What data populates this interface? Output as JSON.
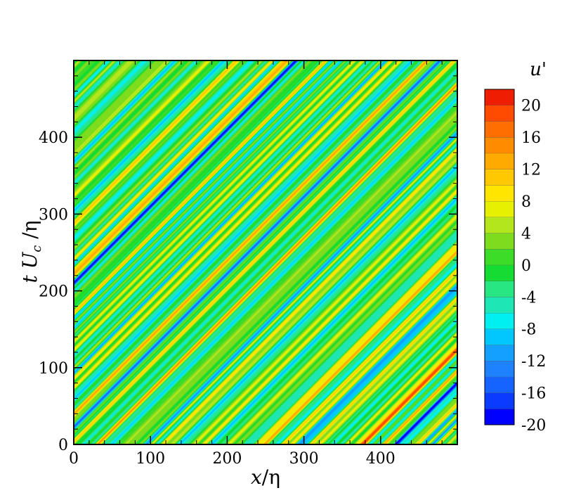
{
  "chart_data": {
    "type": "heatmap",
    "title": "",
    "xlabel": "x/η",
    "ylabel": "t U_c /η",
    "x_ticks": [
      "0",
      "100",
      "200",
      "300",
      "400"
    ],
    "x_tick_values": [
      0,
      100,
      200,
      300,
      400
    ],
    "y_ticks": [
      "0",
      "100",
      "200",
      "300",
      "400"
    ],
    "y_tick_values": [
      0,
      100,
      200,
      300,
      400
    ],
    "xlim": [
      0,
      500
    ],
    "ylim": [
      0,
      500
    ],
    "grid": false,
    "pattern": "diagonal streaks of constant x - t·U_c (convected fluctuations)",
    "colorbar": {
      "title": "u'",
      "min": -20,
      "max": 22,
      "tick_labels": [
        "20",
        "16",
        "12",
        "8",
        "4",
        "0",
        "-4",
        "-8",
        "-12",
        "-16",
        "-20"
      ],
      "tick_values": [
        20,
        16,
        12,
        8,
        4,
        0,
        -4,
        -8,
        -12,
        -16,
        -20
      ],
      "levels": [
        -20,
        -18,
        -16,
        -14,
        -12,
        -10,
        -8,
        -6,
        -4,
        -2,
        0,
        2,
        4,
        6,
        8,
        10,
        12,
        14,
        16,
        18,
        20,
        22
      ],
      "colors": [
        "#0000ff",
        "#0a3cff",
        "#1664ff",
        "#1e82ff",
        "#14a0ff",
        "#00c8ff",
        "#00f0f0",
        "#1ee6b4",
        "#28e682",
        "#14dc32",
        "#3cdc28",
        "#7ddc1e",
        "#b4e61e",
        "#e6f000",
        "#ffe600",
        "#ffc800",
        "#ffaa00",
        "#ff8c00",
        "#ff6e00",
        "#ff4b00",
        "#f01e00"
      ]
    },
    "features": [
      {
        "description": "strong red/blue streak pair crossing center",
        "x_at_t0": -220,
        "amplitude_sign": "positive then negative"
      },
      {
        "description": "red streak bottom-right",
        "x_at_t0": 250
      },
      {
        "description": "red/blue streak pair near lower-right corner",
        "x_at_t0": 380
      }
    ]
  }
}
